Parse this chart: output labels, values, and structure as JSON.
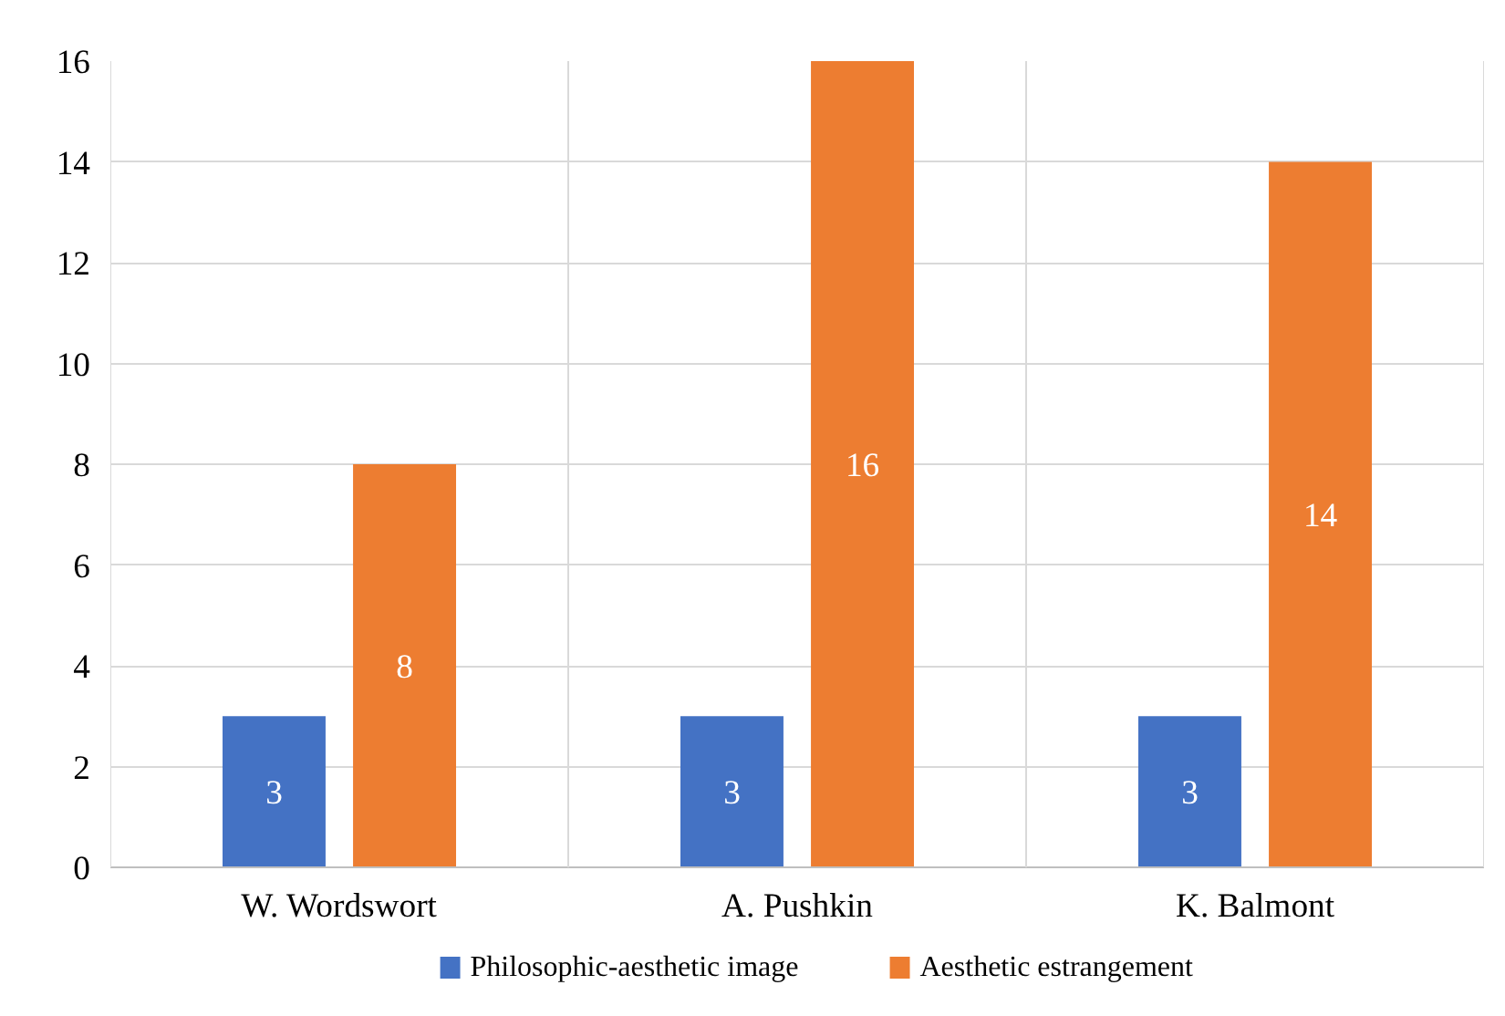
{
  "chart_data": {
    "type": "bar",
    "categories": [
      "W. Wordswort",
      "A. Pushkin",
      "K. Balmont"
    ],
    "series": [
      {
        "name": "Philosophic-aesthetic image",
        "color": "#4472c4",
        "values": [
          3,
          3,
          3
        ]
      },
      {
        "name": "Aesthetic estrangement",
        "color": "#ed7d31",
        "values": [
          8,
          16,
          14
        ]
      }
    ],
    "ylim": [
      0,
      16
    ],
    "yticks": [
      0,
      2,
      4,
      6,
      8,
      10,
      12,
      14,
      16
    ],
    "grid": true,
    "legend": "bottom",
    "data_labels": true
  }
}
